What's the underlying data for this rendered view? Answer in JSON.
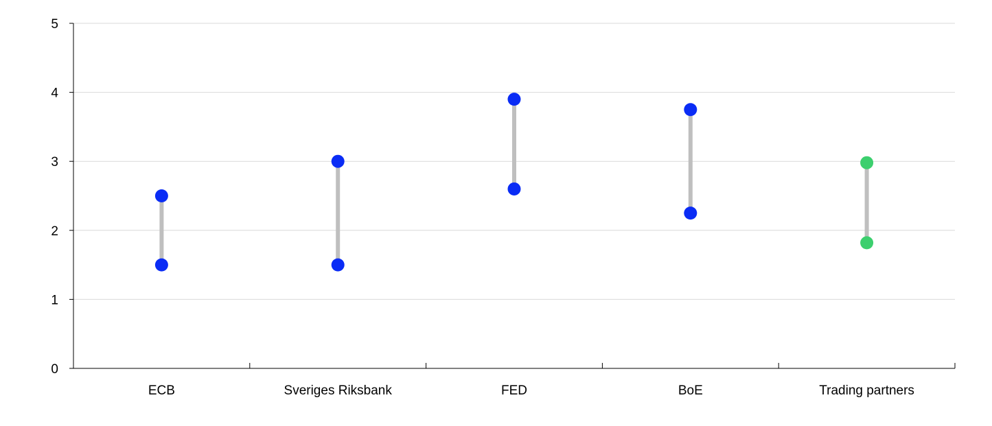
{
  "chart_data": {
    "type": "dumbbell",
    "title": "",
    "xlabel": "",
    "ylabel": "",
    "ylim": [
      0,
      5
    ],
    "yticks": [
      0,
      1,
      2,
      3,
      4,
      5
    ],
    "grid": true,
    "categories": [
      "ECB",
      "Sveriges Riksbank",
      "FED",
      "BoE",
      "Trading partners"
    ],
    "ranges": [
      {
        "category": "ECB",
        "low": 1.5,
        "high": 2.5,
        "color": "#0a2cf5"
      },
      {
        "category": "Sveriges Riksbank",
        "low": 1.5,
        "high": 3.0,
        "color": "#0a2cf5"
      },
      {
        "category": "FED",
        "low": 2.6,
        "high": 3.9,
        "color": "#0a2cf5"
      },
      {
        "category": "BoE",
        "low": 2.25,
        "high": 3.75,
        "color": "#0a2cf5"
      },
      {
        "category": "Trading partners",
        "low": 1.82,
        "high": 2.98,
        "color": "#3ccf6e"
      }
    ],
    "connector_color": "#bfbfbf",
    "grid_color": "#d9d9d9",
    "axis_color": "#000000"
  }
}
